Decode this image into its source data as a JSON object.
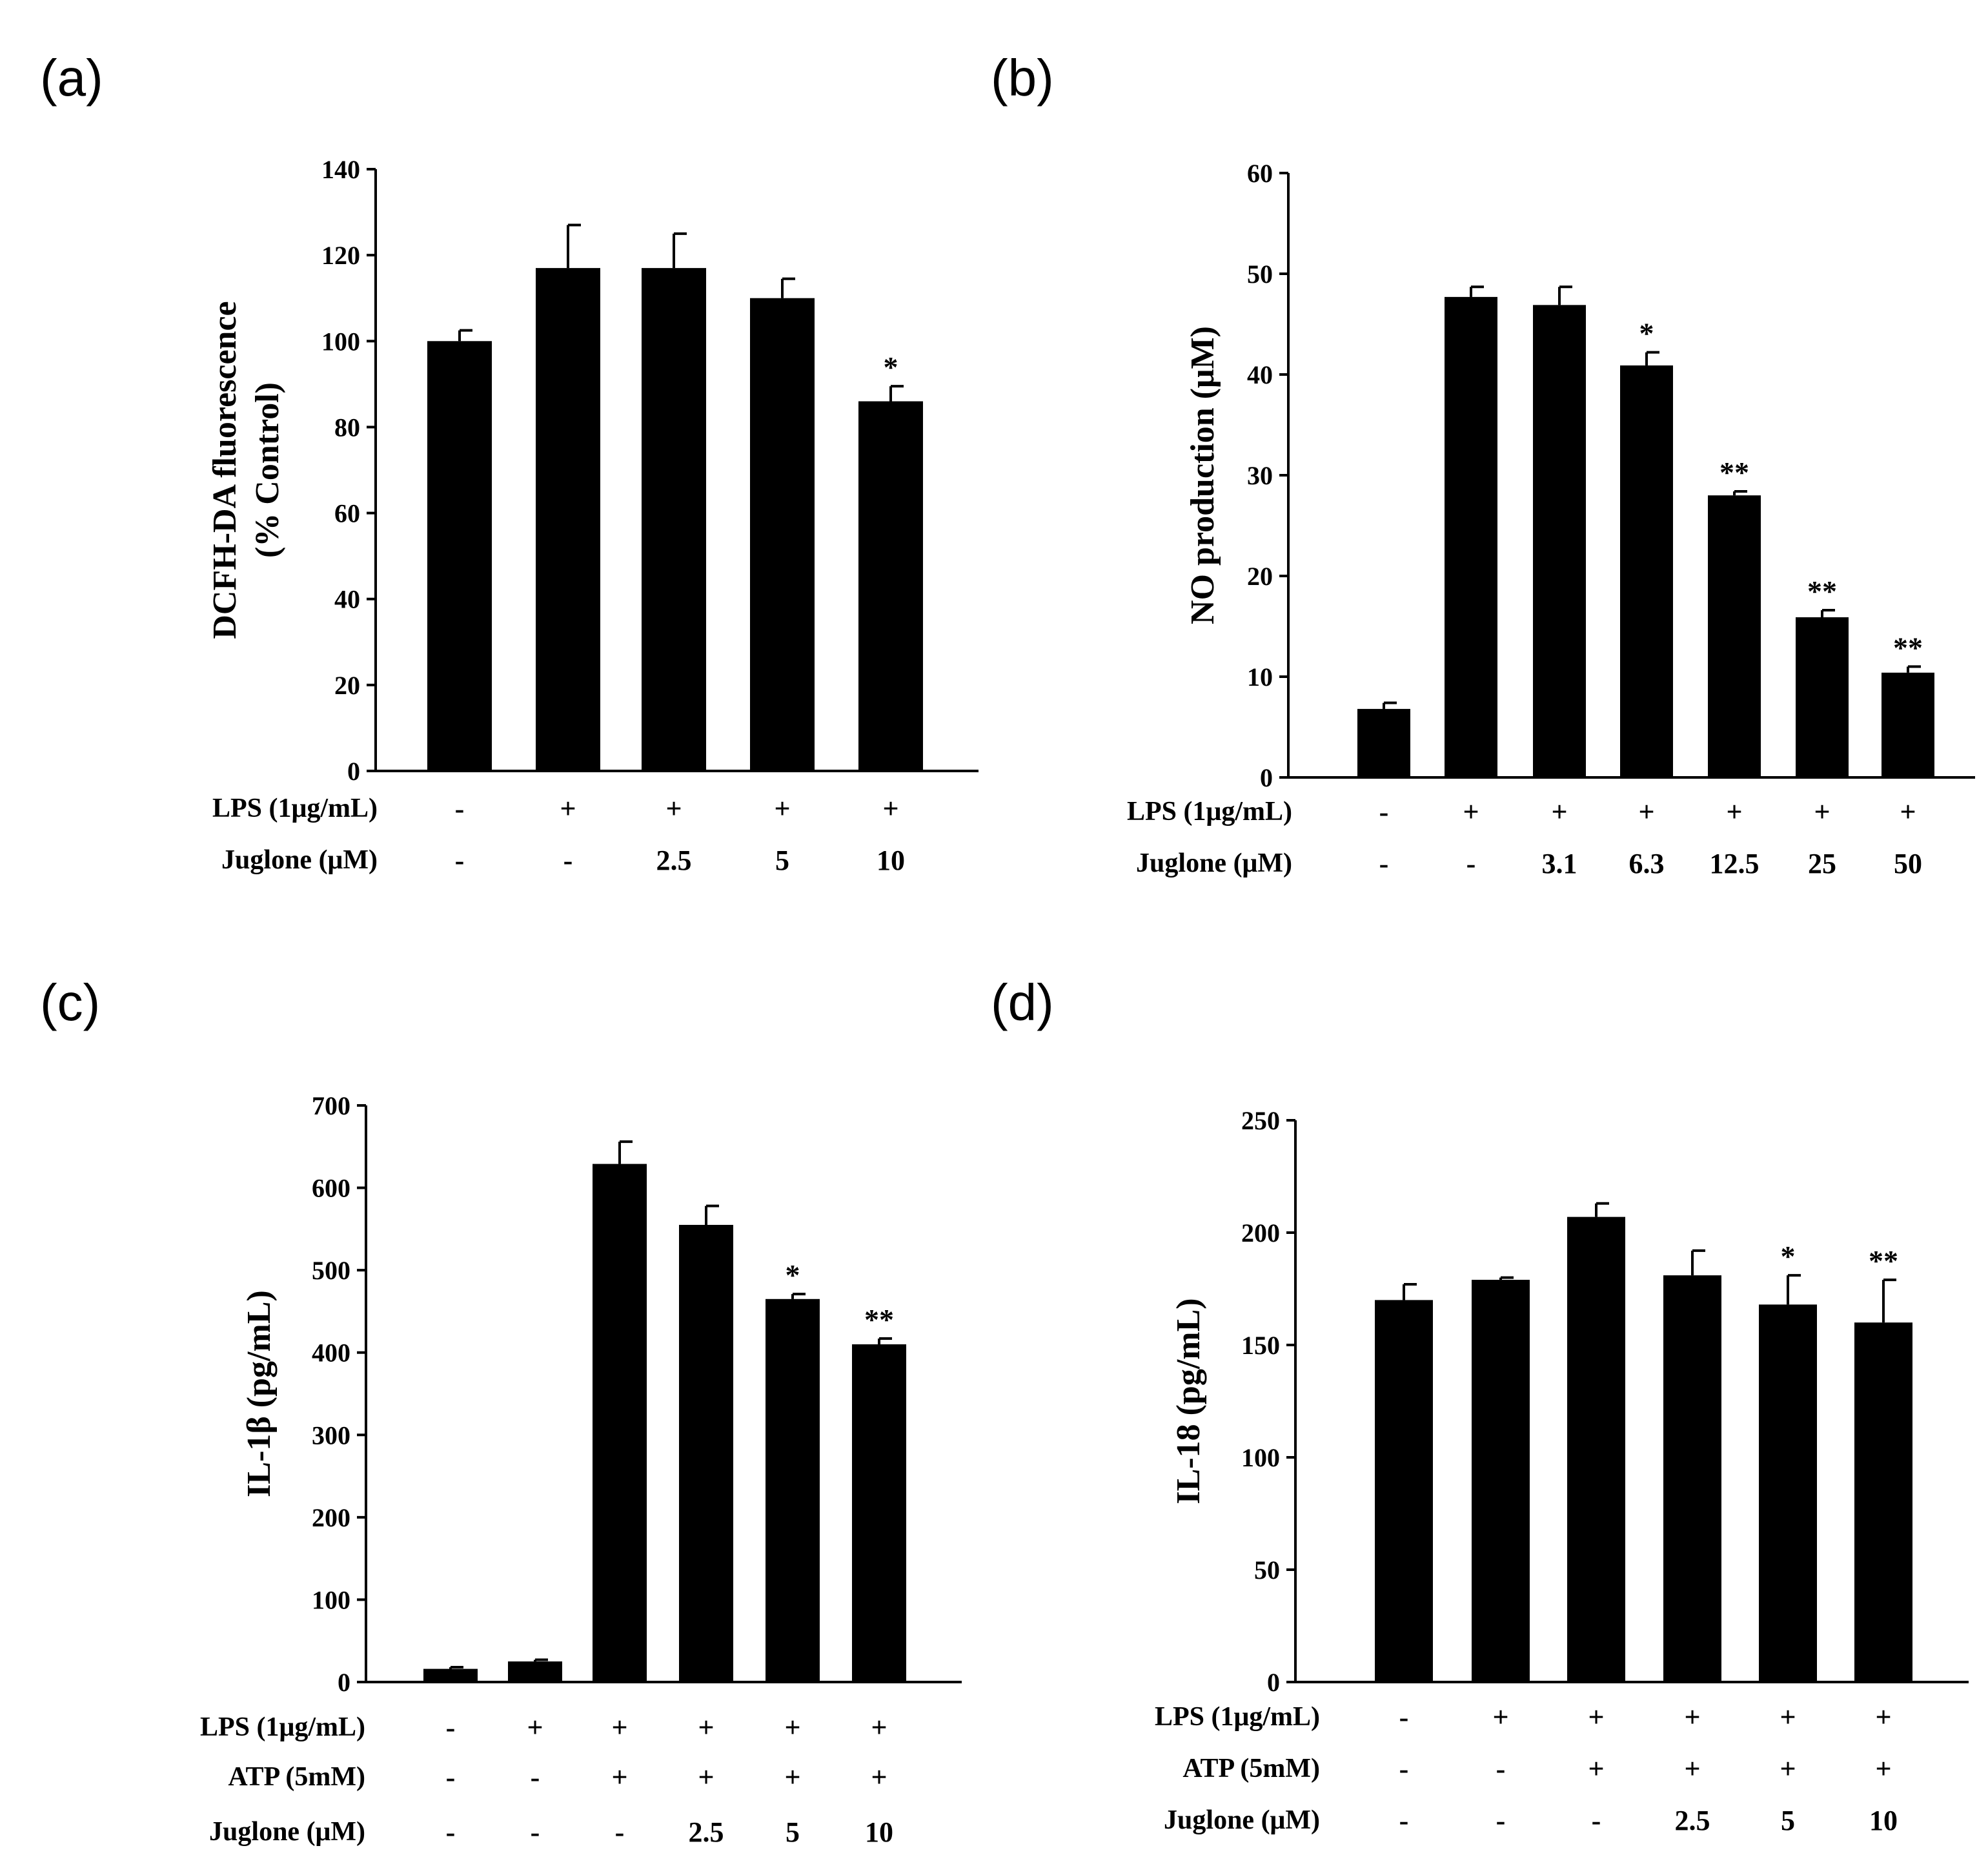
{
  "chart_data": [
    {
      "type": "bar",
      "panel": "(a)",
      "ylabel": [
        "DCFH-DA fluorescence",
        "(% Control)"
      ],
      "ylim": [
        0,
        140
      ],
      "yticks": [
        0,
        20,
        40,
        60,
        80,
        100,
        120,
        140
      ],
      "values": [
        100,
        117,
        117,
        110,
        86
      ],
      "errors": [
        2.5,
        10,
        8,
        4.5,
        3.5
      ],
      "significance": [
        "",
        "",
        "",
        "",
        "*"
      ],
      "conditions": [
        {
          "label": "LPS (1μg/mL)",
          "values": [
            "-",
            "+",
            "+",
            "+",
            "+"
          ]
        },
        {
          "label": "Juglone (μM)",
          "values": [
            "-",
            "-",
            "2.5",
            "5",
            "10"
          ]
        }
      ]
    },
    {
      "type": "bar",
      "panel": "(b)",
      "ylabel": [
        "NO production (μM)"
      ],
      "ylim": [
        0,
        60
      ],
      "yticks": [
        0,
        10,
        20,
        30,
        40,
        50,
        60
      ],
      "values": [
        6.8,
        47.7,
        46.9,
        40.9,
        28.0,
        15.9,
        10.4
      ],
      "errors": [
        0.6,
        1.0,
        1.8,
        1.3,
        0.4,
        0.7,
        0.6
      ],
      "significance": [
        "",
        "",
        "",
        "*",
        "**",
        "**",
        "**"
      ],
      "conditions": [
        {
          "label": "LPS (1μg/mL)",
          "values": [
            "-",
            "+",
            "+",
            "+",
            "+",
            "+",
            "+"
          ]
        },
        {
          "label": "Juglone (μM)",
          "values": [
            "-",
            "-",
            "3.1",
            "6.3",
            "12.5",
            "25",
            "50"
          ]
        }
      ]
    },
    {
      "type": "bar",
      "panel": "(c)",
      "ylabel": [
        "IL-1β (pg/mL)"
      ],
      "ylim": [
        0,
        700
      ],
      "yticks": [
        0,
        100,
        200,
        300,
        400,
        500,
        600,
        700
      ],
      "values": [
        16,
        25,
        629,
        555,
        465,
        410
      ],
      "errors": [
        2,
        2,
        27,
        23,
        6,
        7
      ],
      "significance": [
        "",
        "",
        "",
        "",
        "*",
        "**"
      ],
      "conditions": [
        {
          "label": "LPS (1μg/mL)",
          "values": [
            "-",
            "+",
            "+",
            "+",
            "+",
            "+"
          ]
        },
        {
          "label": "ATP (5mM)",
          "values": [
            "-",
            "-",
            "+",
            "+",
            "+",
            "+"
          ]
        },
        {
          "label": "Juglone (μM)",
          "values": [
            "-",
            "-",
            "-",
            "2.5",
            "5",
            "10"
          ]
        }
      ]
    },
    {
      "type": "bar",
      "panel": "(d)",
      "ylabel": [
        "IL-18 (pg/mL)"
      ],
      "ylim": [
        0,
        250
      ],
      "yticks": [
        0,
        50,
        100,
        150,
        200,
        250
      ],
      "values": [
        170,
        179,
        207,
        181,
        168,
        160
      ],
      "errors": [
        7,
        1,
        6,
        11,
        13,
        19
      ],
      "significance": [
        "",
        "",
        "",
        "",
        "*",
        "**"
      ],
      "conditions": [
        {
          "label": "LPS (1μg/mL)",
          "values": [
            "-",
            "+",
            "+",
            "+",
            "+",
            "+"
          ]
        },
        {
          "label": "ATP (5mM)",
          "values": [
            "-",
            "-",
            "+",
            "+",
            "+",
            "+"
          ]
        },
        {
          "label": "Juglone (μM)",
          "values": [
            "-",
            "-",
            "-",
            "2.5",
            "5",
            "10"
          ]
        }
      ]
    }
  ]
}
